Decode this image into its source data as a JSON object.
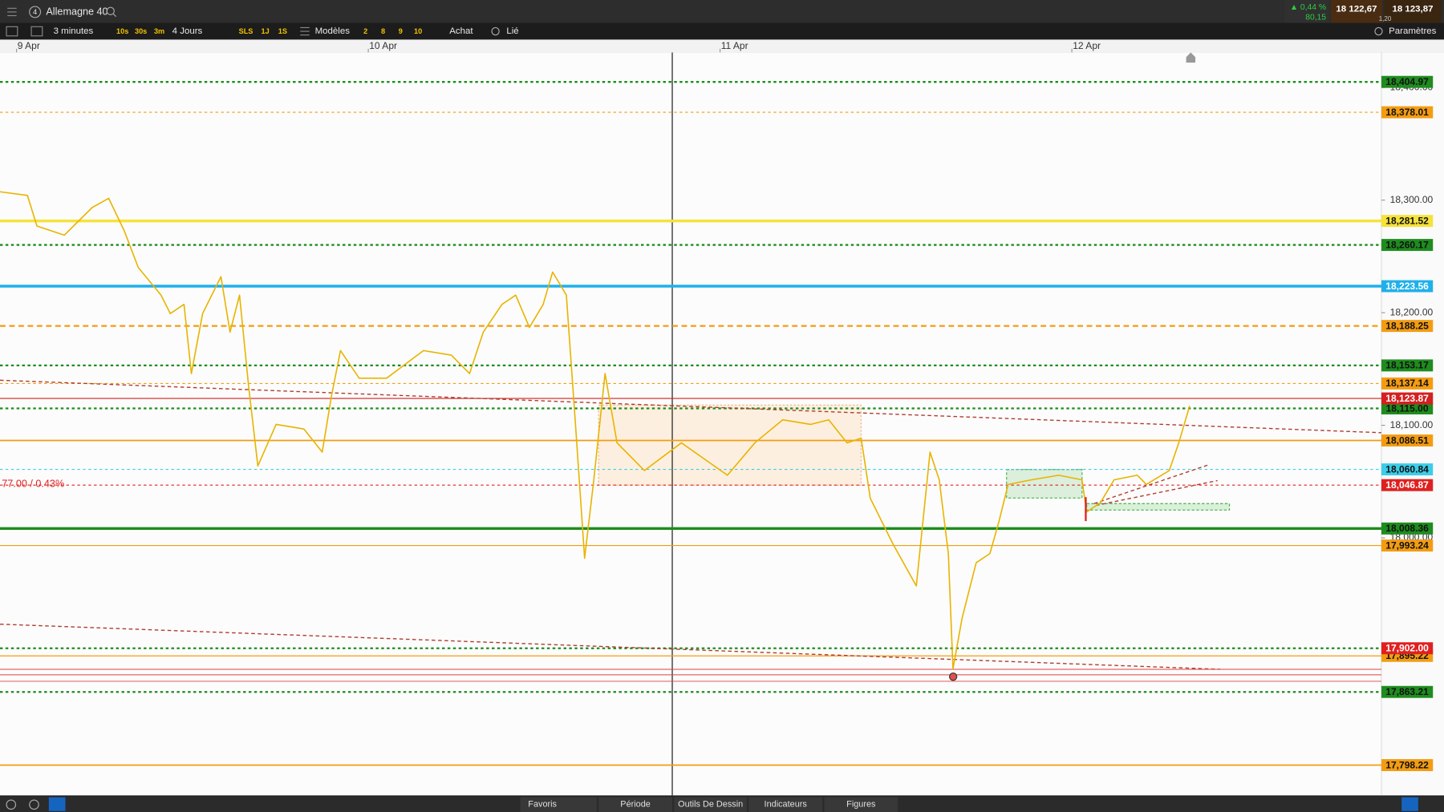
{
  "ui": {
    "top": {
      "badge": "4",
      "instrument": "Allemagne 40",
      "change_pct": "▲ 0,44 %",
      "change_pts": "80,15",
      "sell": "18 122,67",
      "buy": "18 123,87",
      "spread": "1,20"
    },
    "toolbar": {
      "interval": "3 minutes",
      "quick": [
        "10s",
        "30s",
        "3m"
      ],
      "range": "4 Jours",
      "periods": [
        "SLS",
        "1J",
        "1S"
      ],
      "templates": "Modèles",
      "presets": [
        "2",
        "8",
        "9",
        "10"
      ],
      "buy": "Achat",
      "linked": "Lié",
      "settings": "Paramètres"
    },
    "bottom": {
      "tabs": [
        "Favoris",
        "Période",
        "Outils De Dessin",
        "Indicateurs",
        "Figures"
      ]
    }
  },
  "chart_data": {
    "type": "line",
    "annotation": "77.00 / 0.43%",
    "xlim": [
      8.953,
      12.88
    ],
    "xticks": [
      {
        "value": 9,
        "label": "9 Apr"
      },
      {
        "value": 10,
        "label": "10 Apr"
      },
      {
        "value": 11,
        "label": "11 Apr"
      },
      {
        "value": 12,
        "label": "12 Apr"
      }
    ],
    "ylim": [
      17771.3,
      18431.1
    ],
    "yticks": [
      {
        "value": 18400,
        "label": "18,400.00"
      },
      {
        "value": 18300,
        "label": "18,300.00"
      },
      {
        "value": 18200,
        "label": "18,200.00"
      },
      {
        "value": 18100,
        "label": "18,100.00"
      },
      {
        "value": 18000,
        "label": "18,000.00"
      }
    ],
    "series": [
      {
        "color": "#e8b400",
        "x": [
          8.953,
          9.031,
          9.058,
          9.136,
          9.215,
          9.262,
          9.306,
          9.346,
          9.411,
          9.437,
          9.476,
          9.497,
          9.529,
          9.581,
          9.607,
          9.634,
          9.66,
          9.686,
          9.738,
          9.817,
          9.869,
          9.895,
          9.921,
          9.974,
          10.052,
          10.157,
          10.236,
          10.288,
          10.327,
          10.38,
          10.419,
          10.458,
          10.497,
          10.524,
          10.563,
          10.589,
          10.615,
          10.641,
          10.673,
          10.707,
          10.785,
          10.89,
          11.021,
          11.099,
          11.178,
          11.257,
          11.309,
          11.361,
          11.401,
          11.427,
          11.492,
          11.558,
          11.597,
          11.623,
          11.649,
          11.662,
          11.688,
          11.728,
          11.767,
          11.793,
          11.819,
          11.885,
          11.963,
          12.029,
          12.042,
          12.081,
          12.12,
          12.186,
          12.212,
          12.277,
          12.304,
          12.335
        ],
        "values": [
          18307.4,
          18304.1,
          18277.0,
          18268.9,
          18293.4,
          18301.6,
          18273.0,
          18240.2,
          18215.6,
          18199.2,
          18207.4,
          18145.9,
          18199.2,
          18232.0,
          18182.8,
          18215.6,
          18133.6,
          18063.9,
          18100.8,
          18096.7,
          18076.2,
          18125.4,
          18166.4,
          18141.8,
          18141.8,
          18166.4,
          18162.3,
          18145.9,
          18182.8,
          18207.4,
          18215.6,
          18186.9,
          18207.4,
          18236.1,
          18215.6,
          18100.8,
          17981.9,
          18051.6,
          18145.9,
          18084.4,
          18059.8,
          18084.4,
          18055.7,
          18084.4,
          18104.9,
          18100.8,
          18104.9,
          18084.4,
          18088.5,
          18035.2,
          17994.3,
          17957.4,
          18076.2,
          18051.6,
          17986.1,
          17883.6,
          17928.7,
          17977.9,
          17986.1,
          18014.8,
          18047.5,
          18051.6,
          18055.7,
          18051.6,
          18023.0,
          18031.1,
          18051.6,
          18055.7,
          18047.5,
          18059.8,
          18084.4,
          18117.2
        ]
      }
    ],
    "levels": [
      {
        "value": 18404.97,
        "label": "18,404.97",
        "color": "#1e8c1e",
        "style": "dotted",
        "width": 2
      },
      {
        "value": 18378.01,
        "label": "18,378.01",
        "color": "#f39c12",
        "style": "dotted",
        "width": 1
      },
      {
        "value": 18281.52,
        "label": "18,281.52",
        "color": "#f5e23a",
        "style": "solid",
        "width": 3
      },
      {
        "value": 18260.17,
        "label": "18,260.17",
        "color": "#1e8c1e",
        "style": "dotted",
        "width": 2
      },
      {
        "value": 18223.56,
        "label": "18,223.56",
        "color": "#1fb0ea",
        "style": "solid",
        "width": 3
      },
      {
        "value": 18188.25,
        "label": "18,188.25",
        "color": "#f39c12",
        "style": "dashed",
        "width": 2
      },
      {
        "value": 18153.17,
        "label": "18,153.17",
        "color": "#1e8c1e",
        "style": "dotted",
        "width": 2
      },
      {
        "value": 18137.14,
        "label": "18,137.14",
        "color": "#f39c12",
        "style": "dotted",
        "width": 1
      },
      {
        "value": 18115.0,
        "label": "18,115.00",
        "color": "#1e8c1e",
        "style": "dotted",
        "width": 2
      },
      {
        "value": 18123.87,
        "label": "18,123.87",
        "color": "#d32020",
        "style": "solid",
        "width": 1
      },
      {
        "value": 18086.51,
        "label": "18,086.51",
        "color": "#f39c12",
        "style": "solid",
        "width": 1.5
      },
      {
        "value": 18060.84,
        "label": "18,060.84",
        "color": "#3ccde8",
        "style": "dotted",
        "width": 1
      },
      {
        "value": 18046.87,
        "label": "18,046.87",
        "color": "#e02020",
        "style": "dotted",
        "width": 1
      },
      {
        "value": 18008.36,
        "label": "18,008.36",
        "color": "#1e8c1e",
        "style": "solid",
        "width": 3
      },
      {
        "value": 17993.24,
        "label": "17,993.24",
        "color": "#f39c12",
        "style": "solid",
        "width": 1
      },
      {
        "value": 17895.22,
        "label": "17,895.22",
        "color": "#f39c12",
        "style": "solid",
        "width": 1
      },
      {
        "value": 17902.0,
        "label": "17,902.00",
        "color": "#1e8c1e",
        "tag_color": "#e02020",
        "style": "dotted",
        "width": 2
      },
      {
        "value": 17863.21,
        "label": "17,863.21",
        "color": "#1e8c1e",
        "style": "dotted",
        "width": 2
      },
      {
        "value": 17798.22,
        "label": "17,798.22",
        "color": "#f39c12",
        "style": "solid",
        "width": 1.5
      }
    ]
  }
}
